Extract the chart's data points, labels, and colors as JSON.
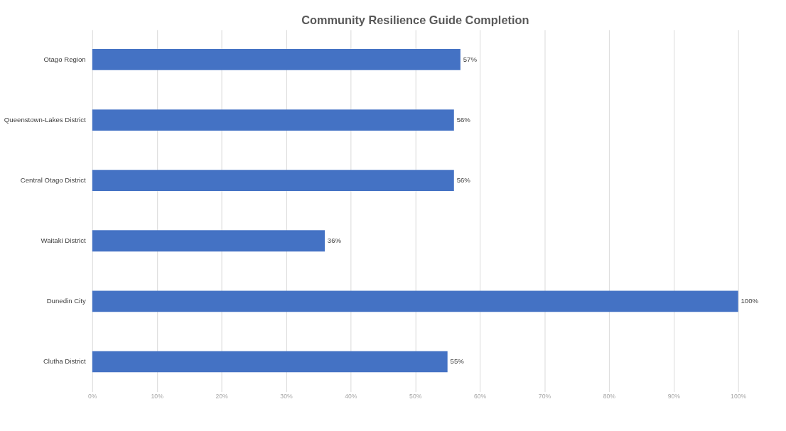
{
  "chart_data": {
    "type": "bar",
    "orientation": "horizontal",
    "title": "Community Resilience Guide Completion",
    "categories": [
      "Otago Region",
      "Queenstown-Lakes District",
      "Central Otago District",
      "Waitaki District",
      "Dunedin City",
      "Clutha District"
    ],
    "values": [
      57,
      56,
      56,
      36,
      100,
      55
    ],
    "color": "#4472c4",
    "value_labels": [
      "57%",
      "56%",
      "56%",
      "36%",
      "100%",
      "55%"
    ],
    "xlim": [
      0,
      100
    ],
    "xticks": [
      {
        "value": 0,
        "label": "0%"
      },
      {
        "value": 10,
        "label": "10%"
      },
      {
        "value": 20,
        "label": "20%"
      },
      {
        "value": 30,
        "label": "30%"
      },
      {
        "value": 40,
        "label": "40%"
      },
      {
        "value": 50,
        "label": "50%"
      },
      {
        "value": 60,
        "label": "60%"
      },
      {
        "value": 70,
        "label": "70%"
      },
      {
        "value": 80,
        "label": "80%"
      },
      {
        "value": 90,
        "label": "90%"
      },
      {
        "value": 100,
        "label": "100%"
      }
    ],
    "grid": "x"
  }
}
